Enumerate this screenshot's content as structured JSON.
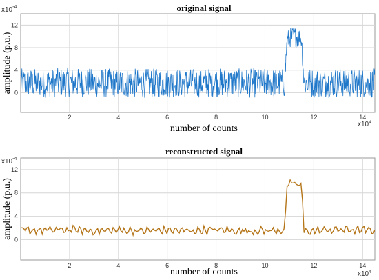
{
  "chart_data": [
    {
      "type": "line",
      "title": "original signal",
      "xlabel": "number of counts",
      "ylabel": "amplitude (p.u.)",
      "x_multiplier_label": "x10",
      "x_multiplier_exp": "4",
      "y_multiplier_label": "x10",
      "y_multiplier_exp": "-4",
      "xlim": [
        0,
        14.5
      ],
      "ylim": [
        -3.5,
        14
      ],
      "xticks": [
        "2",
        "4",
        "6",
        "8",
        "10",
        "12",
        "14"
      ],
      "yticks": [
        "0",
        "4",
        "8",
        "12"
      ],
      "grid": true,
      "series": [
        {
          "color": "#1f77c9",
          "noise": true,
          "x": [
            0,
            1,
            2,
            3,
            4,
            5,
            6,
            7,
            8,
            9,
            10,
            10.8,
            10.9,
            11.0,
            11.2,
            11.4,
            11.5,
            11.6,
            12,
            13,
            14,
            14.5
          ],
          "y": [
            1.7,
            1.7,
            1.8,
            1.7,
            1.7,
            1.7,
            1.7,
            1.7,
            1.8,
            1.7,
            1.7,
            1.7,
            9.0,
            9.8,
            10.0,
            9.8,
            9.5,
            1.7,
            1.7,
            1.8,
            1.7,
            1.7
          ]
        }
      ]
    },
    {
      "type": "line",
      "title": "reconstructed signal",
      "xlabel": "number of counts",
      "ylabel": "amplitude (p.u.)",
      "x_multiplier_label": "x10",
      "x_multiplier_exp": "4",
      "y_multiplier_label": "x10",
      "y_multiplier_exp": "-4",
      "xlim": [
        0,
        14.5
      ],
      "ylim": [
        -3.5,
        14
      ],
      "xticks": [
        "2",
        "4",
        "6",
        "8",
        "10",
        "12",
        "14"
      ],
      "yticks": [
        "0",
        "4",
        "8",
        "12"
      ],
      "grid": true,
      "series": [
        {
          "color": "#b5761a",
          "noise": false,
          "x": [
            0,
            1,
            2,
            3,
            4,
            5,
            6,
            7,
            8,
            9,
            10,
            10.8,
            10.9,
            11.0,
            11.2,
            11.4,
            11.5,
            11.6,
            12,
            13,
            14,
            14.5
          ],
          "y": [
            1.6,
            1.6,
            1.7,
            1.5,
            1.6,
            1.5,
            1.6,
            1.5,
            1.7,
            1.5,
            1.5,
            1.6,
            9.0,
            9.5,
            9.6,
            9.4,
            9.2,
            1.5,
            1.5,
            1.7,
            1.6,
            1.5
          ]
        }
      ]
    }
  ]
}
